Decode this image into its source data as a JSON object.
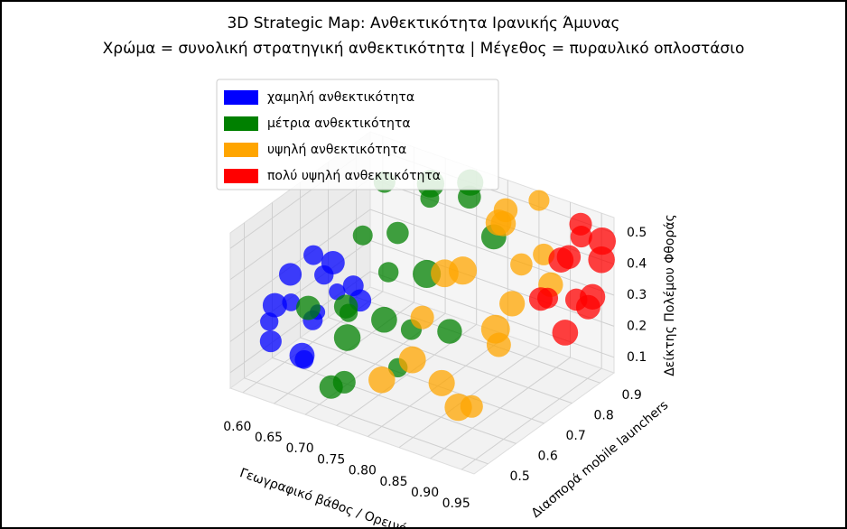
{
  "chart_data": {
    "type": "scatter3d",
    "title": "3D Strategic Map: Ανθεκτικότητα Ιρανικής Άμυνας",
    "subtitle": "Χρώμα = συνολική στρατηγική ανθεκτικότητα | Μέγεθος = πυραυλικό οπλοστάσιο",
    "x_label": "Γεωγραφικό βάθος / Ορεινότητ",
    "y_label": "Διασπορά mobile launchers",
    "z_label": "Δείκτης Πολέμου Φθοράς",
    "xlim": [
      0.58,
      0.97
    ],
    "ylim": [
      0.45,
      0.95
    ],
    "zlim": [
      0.05,
      0.55
    ],
    "xticks": [
      {
        "value": 0.6,
        "label": "0.60"
      },
      0.65,
      {
        "value": 0.7,
        "label": "0.70"
      },
      0.75,
      {
        "value": 0.8,
        "label": "0.80"
      },
      0.85,
      {
        "value": 0.9,
        "label": "0.90"
      },
      0.95
    ],
    "yticks": [
      0.5,
      0.6,
      0.7,
      0.8,
      0.9
    ],
    "zticks": [
      0.1,
      0.2,
      0.3,
      0.4,
      0.5
    ],
    "grid": true,
    "legend": "upper left",
    "series": [
      {
        "name": "χαμηλή ανθεκτικότητα",
        "color": "#0000ff",
        "x": [
          0.6,
          0.61,
          0.62,
          0.6,
          0.63,
          0.61,
          0.64,
          0.62,
          0.6,
          0.63,
          0.65,
          0.61,
          0.62,
          0.64,
          0.6
        ],
        "y": [
          0.55,
          0.6,
          0.52,
          0.7,
          0.65,
          0.75,
          0.58,
          0.8,
          0.62,
          0.72,
          0.55,
          0.68,
          0.5,
          0.78,
          0.74
        ],
        "z": [
          0.15,
          0.25,
          0.3,
          0.12,
          0.2,
          0.28,
          0.1,
          0.18,
          0.32,
          0.22,
          0.14,
          0.35,
          0.26,
          0.16,
          0.24
        ],
        "sizes": [
          120,
          80,
          150,
          100,
          60,
          140,
          90,
          110,
          130,
          70,
          160,
          100,
          85,
          125,
          95
        ]
      },
      {
        "name": "μέτρια ανθεκτικότητα",
        "color": "#008000",
        "x": [
          0.66,
          0.68,
          0.7,
          0.72,
          0.74,
          0.76,
          0.78,
          0.8,
          0.67,
          0.71,
          0.75,
          0.79,
          0.69,
          0.73,
          0.77,
          0.81,
          0.7,
          0.74,
          0.72,
          0.68
        ],
        "y": [
          0.55,
          0.7,
          0.6,
          0.85,
          0.5,
          0.75,
          0.65,
          0.9,
          0.8,
          0.52,
          0.62,
          0.58,
          0.92,
          0.68,
          0.88,
          0.72,
          0.78,
          0.95,
          0.56,
          0.64
        ],
        "z": [
          0.3,
          0.45,
          0.2,
          0.5,
          0.15,
          0.35,
          0.25,
          0.4,
          0.55,
          0.1,
          0.28,
          0.18,
          0.48,
          0.38,
          0.52,
          0.22,
          0.42,
          0.5,
          0.32,
          0.26
        ],
        "sizes": [
          150,
          100,
          180,
          90,
          130,
          200,
          110,
          160,
          120,
          140,
          170,
          95,
          190,
          105,
          135,
          155,
          125,
          175,
          85,
          145
        ]
      },
      {
        "name": "υψηλή ανθεκτικότητα",
        "color": "#ffa500",
        "x": [
          0.8,
          0.82,
          0.84,
          0.86,
          0.88,
          0.9,
          0.92,
          0.83,
          0.85,
          0.87,
          0.89,
          0.91,
          0.81,
          0.84,
          0.88,
          0.86,
          0.9,
          0.82
        ],
        "y": [
          0.5,
          0.6,
          0.7,
          0.8,
          0.9,
          0.55,
          0.65,
          0.85,
          0.95,
          0.75,
          0.62,
          0.72,
          0.92,
          0.52,
          0.82,
          0.58,
          0.88,
          0.68
        ],
        "z": [
          0.2,
          0.35,
          0.45,
          0.55,
          0.4,
          0.15,
          0.3,
          0.5,
          0.52,
          0.25,
          0.1,
          0.38,
          0.48,
          0.28,
          0.42,
          0.18,
          0.33,
          0.44
        ],
        "sizes": [
          180,
          140,
          200,
          160,
          120,
          190,
          150,
          170,
          110,
          210,
          130,
          165,
          145,
          185,
          125,
          175,
          155,
          195
        ]
      },
      {
        "name": "πολύ υψηλή ανθεκτικότητα",
        "color": "#ff0000",
        "x": [
          0.92,
          0.93,
          0.94,
          0.95,
          0.96,
          0.93,
          0.95,
          0.94,
          0.96,
          0.92,
          0.95,
          0.94
        ],
        "y": [
          0.8,
          0.85,
          0.9,
          0.95,
          0.88,
          0.92,
          0.82,
          0.78,
          0.93,
          0.9,
          0.86,
          0.94
        ],
        "z": [
          0.35,
          0.45,
          0.5,
          0.4,
          0.3,
          0.52,
          0.25,
          0.38,
          0.48,
          0.42,
          0.33,
          0.28
        ],
        "sizes": [
          140,
          160,
          120,
          180,
          150,
          130,
          170,
          110,
          190,
          145,
          125,
          165
        ]
      }
    ]
  }
}
